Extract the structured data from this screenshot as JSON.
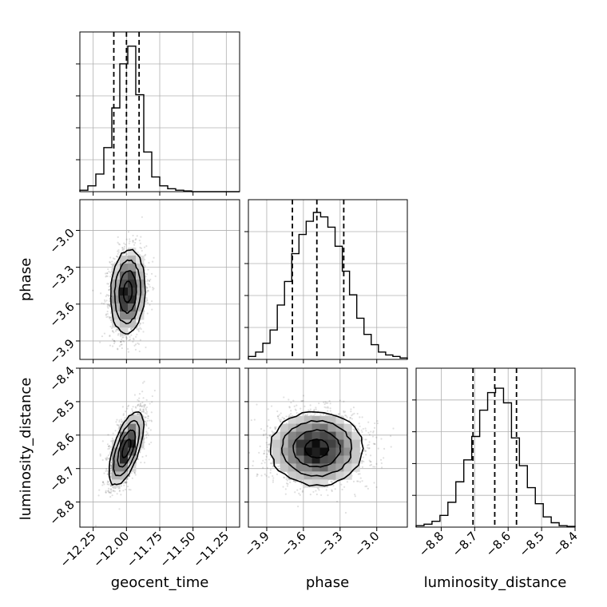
{
  "chart_data": {
    "type": "corner",
    "parameters": [
      "geocent_time",
      "phase",
      "luminosity_distance"
    ],
    "axis_labels": {
      "x": [
        "geocent_time",
        "phase",
        "luminosity_distance"
      ],
      "y": [
        "phase",
        "luminosity_distance"
      ]
    },
    "ranges": [
      [
        -12.35,
        -11.15
      ],
      [
        -4.05,
        -2.75
      ],
      [
        -8.875,
        -8.4
      ]
    ],
    "ticks": [
      {
        "values": [
          -12.25,
          -12.0,
          -11.75,
          -11.5,
          -11.25
        ],
        "labels": [
          "−12.25",
          "−12.00",
          "−11.75",
          "−11.50",
          "−11.25"
        ]
      },
      {
        "values": [
          -3.9,
          -3.6,
          -3.3,
          -3.0
        ],
        "labels": [
          "−3.9",
          "−3.6",
          "−3.3",
          "−3.0"
        ]
      },
      {
        "values": [
          -8.8,
          -8.7,
          -8.6,
          -8.5,
          -8.4
        ],
        "labels": [
          "−8.8",
          "−8.7",
          "−8.6",
          "−8.5",
          "−8.4"
        ]
      }
    ],
    "marginals": [
      {
        "parameter": "geocent_time",
        "quantiles": [
          -12.095,
          -12.0,
          -11.905
        ],
        "hist": [
          0.01,
          0.04,
          0.12,
          0.3,
          0.57,
          0.87,
          0.99,
          0.66,
          0.27,
          0.1,
          0.04,
          0.02,
          0.01,
          0.005,
          0.0,
          0.0,
          0.0,
          0.0,
          0.0,
          0.0
        ]
      },
      {
        "parameter": "phase",
        "quantiles": [
          -3.69,
          -3.49,
          -3.27
        ],
        "hist": [
          0.02,
          0.05,
          0.11,
          0.2,
          0.37,
          0.53,
          0.72,
          0.85,
          0.94,
          1.0,
          0.97,
          0.9,
          0.77,
          0.6,
          0.44,
          0.28,
          0.17,
          0.1,
          0.05,
          0.03,
          0.02,
          0.01
        ]
      },
      {
        "parameter": "luminosity_distance",
        "quantiles": [
          -8.705,
          -8.64,
          -8.575
        ],
        "hist": [
          0.01,
          0.02,
          0.04,
          0.08,
          0.17,
          0.31,
          0.46,
          0.62,
          0.8,
          0.92,
          0.95,
          0.85,
          0.61,
          0.42,
          0.27,
          0.16,
          0.07,
          0.03,
          0.01,
          0.005
        ]
      }
    ],
    "pairs": [
      {
        "x": "geocent_time",
        "y": "phase",
        "center": [
          -11.99,
          -3.5
        ],
        "sigma": [
          0.065,
          0.17
        ],
        "rho": 0.1
      },
      {
        "x": "geocent_time",
        "y": "luminosity_distance",
        "center": [
          -12.0,
          -8.64
        ],
        "sigma": [
          0.065,
          0.055
        ],
        "rho": 0.62
      },
      {
        "x": "phase",
        "y": "luminosity_distance",
        "center": [
          -3.49,
          -8.64
        ],
        "sigma": [
          0.19,
          0.055
        ],
        "rho": 0.0
      }
    ],
    "contour_levels_sigma": [
      0.5,
      1.0,
      1.5,
      2.0
    ],
    "grid": true
  }
}
